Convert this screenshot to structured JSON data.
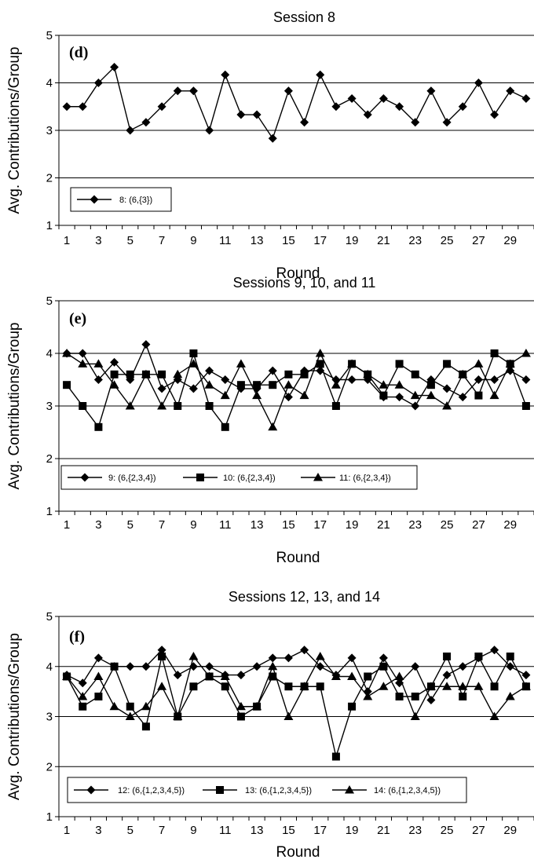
{
  "chart_data": [
    {
      "type": "line",
      "title": "Session 8",
      "panel_label": "(d)",
      "xlabel": "Round",
      "ylabel": "Avg. Contributions/Group",
      "ylim": [
        1,
        5
      ],
      "yticks": [
        1,
        2,
        3,
        4,
        5
      ],
      "xticks": [
        1,
        3,
        5,
        7,
        9,
        11,
        13,
        15,
        17,
        19,
        21,
        23,
        25,
        27,
        29
      ],
      "grid": "horizontal",
      "legend_position": "bottom-left",
      "x": [
        1,
        2,
        3,
        4,
        5,
        6,
        7,
        8,
        9,
        10,
        11,
        12,
        13,
        14,
        15,
        16,
        17,
        18,
        19,
        20,
        21,
        22,
        23,
        24,
        25,
        26,
        27,
        28,
        29,
        30
      ],
      "series": [
        {
          "name": "8: (6,{3})",
          "marker": "diamond",
          "values": [
            3.5,
            3.5,
            4.0,
            4.33,
            3.0,
            3.17,
            3.5,
            3.83,
            3.83,
            3.0,
            4.17,
            3.33,
            3.33,
            2.83,
            3.83,
            3.17,
            4.17,
            3.5,
            3.67,
            3.33,
            3.67,
            3.5,
            3.17,
            3.83,
            3.17,
            3.5,
            4.0,
            3.33,
            3.83,
            3.67
          ]
        }
      ]
    },
    {
      "type": "line",
      "title": "Sessions 9, 10, and 11",
      "panel_label": "(e)",
      "xlabel": "Round",
      "ylabel": "Avg. Contributions/Group",
      "ylim": [
        1,
        5
      ],
      "yticks": [
        1,
        2,
        3,
        4,
        5
      ],
      "xticks": [
        1,
        3,
        5,
        7,
        9,
        11,
        13,
        15,
        17,
        19,
        21,
        23,
        25,
        27,
        29
      ],
      "grid": "horizontal",
      "legend_position": "bottom",
      "x": [
        1,
        2,
        3,
        4,
        5,
        6,
        7,
        8,
        9,
        10,
        11,
        12,
        13,
        14,
        15,
        16,
        17,
        18,
        19,
        20,
        21,
        22,
        23,
        24,
        25,
        26,
        27,
        28,
        29,
        30
      ],
      "series": [
        {
          "name": "9: (6,{2,3,4})",
          "marker": "diamond",
          "values": [
            4.0,
            4.0,
            3.5,
            3.83,
            3.5,
            4.17,
            3.33,
            3.5,
            3.33,
            3.67,
            3.5,
            3.33,
            3.33,
            3.67,
            3.17,
            3.67,
            3.67,
            3.5,
            3.5,
            3.5,
            3.17,
            3.17,
            3.0,
            3.5,
            3.33,
            3.17,
            3.5,
            3.5,
            3.67,
            3.5
          ]
        },
        {
          "name": "10: (6,{2,3,4})",
          "marker": "square",
          "values": [
            3.4,
            3.0,
            2.6,
            3.6,
            3.6,
            3.6,
            3.6,
            3.0,
            4.0,
            3.0,
            2.6,
            3.4,
            3.4,
            3.4,
            3.6,
            3.6,
            3.8,
            3.0,
            3.8,
            3.6,
            3.2,
            3.8,
            3.6,
            3.4,
            3.8,
            3.6,
            3.2,
            4.0,
            3.8,
            3.0
          ]
        },
        {
          "name": "11: (6,{2,3,4})",
          "marker": "triangle",
          "values": [
            4.0,
            3.8,
            3.8,
            3.4,
            3.0,
            3.6,
            3.0,
            3.6,
            3.8,
            3.4,
            3.2,
            3.8,
            3.2,
            2.6,
            3.4,
            3.2,
            4.0,
            3.4,
            3.8,
            3.6,
            3.4,
            3.4,
            3.2,
            3.2,
            3.0,
            3.6,
            3.8,
            3.2,
            3.8,
            4.0
          ]
        }
      ]
    },
    {
      "type": "line",
      "title": "Sessions 12, 13, and 14",
      "panel_label": "(f)",
      "xlabel": "Round",
      "ylabel": "Avg. Contributions/Group",
      "ylim": [
        1,
        5
      ],
      "yticks": [
        1,
        2,
        3,
        4,
        5
      ],
      "xticks": [
        1,
        3,
        5,
        7,
        9,
        11,
        13,
        15,
        17,
        19,
        21,
        23,
        25,
        27,
        29
      ],
      "grid": "horizontal",
      "legend_position": "bottom",
      "x": [
        1,
        2,
        3,
        4,
        5,
        6,
        7,
        8,
        9,
        10,
        11,
        12,
        13,
        14,
        15,
        16,
        17,
        18,
        19,
        20,
        21,
        22,
        23,
        24,
        25,
        26,
        27,
        28,
        29,
        30
      ],
      "series": [
        {
          "name": "12: (6,{1,2,3,4,5})",
          "marker": "diamond",
          "values": [
            3.83,
            3.67,
            4.17,
            4.0,
            4.0,
            4.0,
            4.33,
            3.83,
            4.0,
            4.0,
            3.83,
            3.83,
            4.0,
            4.17,
            4.17,
            4.33,
            4.0,
            3.83,
            4.17,
            3.5,
            4.17,
            3.67,
            4.0,
            3.33,
            3.83,
            4.0,
            4.17,
            4.33,
            4.0,
            3.83
          ]
        },
        {
          "name": "13: (6,{1,2,3,4,5})",
          "marker": "square",
          "values": [
            3.8,
            3.2,
            3.4,
            4.0,
            3.2,
            2.8,
            4.2,
            3.0,
            3.6,
            3.8,
            3.6,
            3.0,
            3.2,
            3.8,
            3.6,
            3.6,
            3.6,
            2.2,
            3.2,
            3.8,
            4.0,
            3.4,
            3.4,
            3.6,
            4.2,
            3.4,
            4.2,
            3.6,
            4.2,
            3.6
          ]
        },
        {
          "name": "14: (6,{1,2,3,4,5})",
          "marker": "triangle",
          "values": [
            3.8,
            3.4,
            3.8,
            3.2,
            3.0,
            3.2,
            3.6,
            3.0,
            4.2,
            3.8,
            3.8,
            3.2,
            3.2,
            4.0,
            3.0,
            3.6,
            4.2,
            3.8,
            3.8,
            3.4,
            3.6,
            3.8,
            3.0,
            3.6,
            3.6,
            3.6,
            3.6,
            3.0,
            3.4,
            3.6
          ]
        }
      ]
    }
  ]
}
